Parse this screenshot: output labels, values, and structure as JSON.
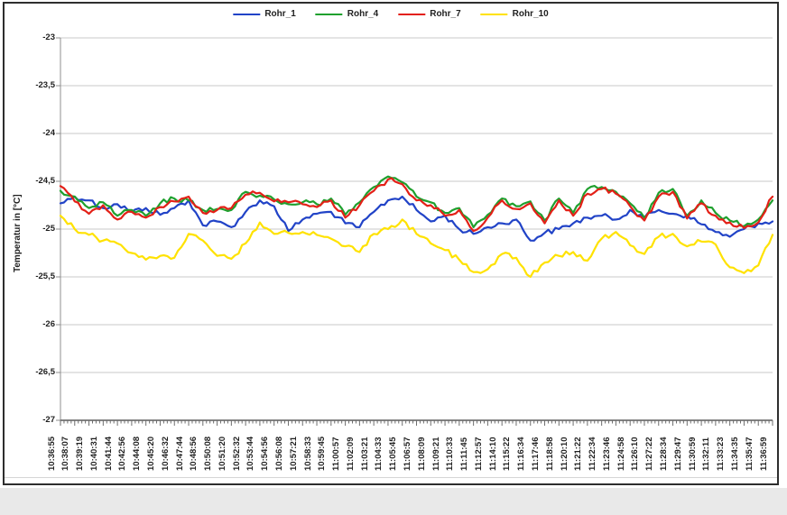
{
  "chart_data": {
    "type": "line",
    "title": "",
    "xlabel": "",
    "ylabel": "Temperatur in [°C]",
    "ylim": [
      -27,
      -23
    ],
    "ytick_step": 0.5,
    "ytick_labels": [
      "-23",
      "-23,5",
      "-24",
      "-24,5",
      "-25",
      "-25,5",
      "-26",
      "-26,5",
      "-27"
    ],
    "grid": "horizontal",
    "legend_position": "top-center",
    "categories": [
      "10:36:55",
      "10:38:07",
      "10:39:19",
      "10:40:31",
      "10:41:44",
      "10:42:56",
      "10:44:08",
      "10:45:20",
      "10:46:32",
      "10:47:44",
      "10:48:56",
      "10:50:08",
      "10:51:20",
      "10:52:32",
      "10:53:44",
      "10:54:56",
      "10:56:08",
      "10:57:21",
      "10:58:33",
      "10:59:45",
      "11:00:57",
      "11:02:09",
      "11:03:21",
      "11:04:33",
      "11:05:45",
      "11:06:57",
      "11:08:09",
      "11:09:21",
      "11:10:33",
      "11:11:45",
      "11:12:57",
      "11:14:10",
      "11:15:22",
      "11:16:34",
      "11:17:46",
      "11:18:58",
      "11:20:10",
      "11:21:22",
      "11:22:34",
      "11:23:46",
      "11:24:58",
      "11:26:10",
      "11:27:22",
      "11:28:34",
      "11:29:47",
      "11:30:59",
      "11:32:11",
      "11:33:23",
      "11:34:35",
      "11:35:47",
      "11:36:59"
    ],
    "series": [
      {
        "name": "Rohr_1",
        "color": "#2143c7",
        "values": [
          -24.73,
          -24.66,
          -24.7,
          -24.78,
          -24.74,
          -24.82,
          -24.78,
          -24.85,
          -24.78,
          -24.7,
          -24.96,
          -24.92,
          -24.98,
          -24.82,
          -24.7,
          -24.76,
          -25.02,
          -24.9,
          -24.84,
          -24.82,
          -24.94,
          -24.98,
          -24.82,
          -24.7,
          -24.66,
          -24.8,
          -24.92,
          -24.86,
          -25.0,
          -25.05,
          -24.98,
          -24.94,
          -24.9,
          -25.12,
          -25.04,
          -25.0,
          -24.94,
          -24.88,
          -24.86,
          -24.9,
          -24.8,
          -24.88,
          -24.8,
          -24.84,
          -24.86,
          -24.95,
          -25.03,
          -25.08,
          -25.0,
          -24.94,
          -24.92
        ]
      },
      {
        "name": "Rohr_4",
        "color": "#1fa02e",
        "values": [
          -24.6,
          -24.66,
          -24.78,
          -24.72,
          -24.86,
          -24.8,
          -24.86,
          -24.73,
          -24.68,
          -24.7,
          -24.8,
          -24.79,
          -24.8,
          -24.61,
          -24.65,
          -24.69,
          -24.74,
          -24.72,
          -24.74,
          -24.68,
          -24.85,
          -24.72,
          -24.56,
          -24.45,
          -24.51,
          -24.66,
          -24.72,
          -24.83,
          -24.78,
          -24.98,
          -24.85,
          -24.68,
          -24.76,
          -24.71,
          -24.91,
          -24.68,
          -24.83,
          -24.58,
          -24.56,
          -24.61,
          -24.73,
          -24.88,
          -24.62,
          -24.58,
          -24.86,
          -24.7,
          -24.83,
          -24.91,
          -24.97,
          -24.9,
          -24.7
        ]
      },
      {
        "name": "Rohr_7",
        "color": "#e32017",
        "values": [
          -24.55,
          -24.71,
          -24.84,
          -24.75,
          -24.9,
          -24.82,
          -24.88,
          -24.77,
          -24.71,
          -24.66,
          -24.83,
          -24.8,
          -24.78,
          -24.64,
          -24.62,
          -24.71,
          -24.72,
          -24.74,
          -24.77,
          -24.7,
          -24.88,
          -24.75,
          -24.6,
          -24.48,
          -24.53,
          -24.7,
          -24.75,
          -24.86,
          -24.8,
          -25.02,
          -24.88,
          -24.7,
          -24.79,
          -24.73,
          -24.94,
          -24.7,
          -24.86,
          -24.63,
          -24.58,
          -24.63,
          -24.76,
          -24.91,
          -24.66,
          -24.61,
          -24.89,
          -24.73,
          -24.86,
          -24.93,
          -24.99,
          -24.93,
          -24.66
        ]
      },
      {
        "name": "Rohr_10",
        "color": "#ffe200",
        "values": [
          -24.86,
          -25.0,
          -25.06,
          -25.12,
          -25.15,
          -25.25,
          -25.32,
          -25.28,
          -25.3,
          -25.05,
          -25.12,
          -25.28,
          -25.31,
          -25.15,
          -24.93,
          -25.05,
          -25.04,
          -25.03,
          -25.06,
          -25.1,
          -25.18,
          -25.24,
          -25.05,
          -25.0,
          -24.9,
          -25.05,
          -25.15,
          -25.22,
          -25.32,
          -25.45,
          -25.42,
          -25.26,
          -25.3,
          -25.5,
          -25.35,
          -25.28,
          -25.24,
          -25.33,
          -25.1,
          -25.03,
          -25.17,
          -25.26,
          -25.08,
          -25.05,
          -25.18,
          -25.13,
          -25.16,
          -25.4,
          -25.46,
          -25.38,
          -25.06
        ]
      }
    ]
  }
}
